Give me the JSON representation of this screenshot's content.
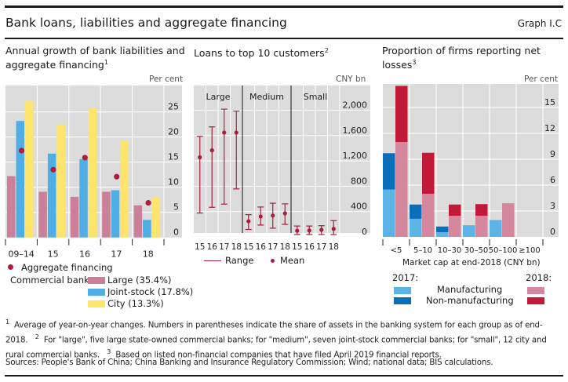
{
  "header": {
    "title": "Bank loans, liabilities and aggregate financing",
    "graph_id": "Graph I.C"
  },
  "panels": {
    "left": {
      "title": "Annual growth of bank liabilities and aggregate financing",
      "title_sup": "1",
      "unit": "Per cent",
      "legend": {
        "agg_label": "Aggregate financing",
        "banks_label": "Commercial banks:",
        "large": "Large (35.4%)",
        "joint": "Joint-stock (17.8%)",
        "city": "City (13.3%)"
      }
    },
    "middle": {
      "title": "Loans to top 10 customers",
      "title_sup": "2",
      "unit": "CNY bn",
      "legend": {
        "range": "Range",
        "mean": "Mean"
      }
    },
    "right": {
      "title": "Proportion of firms reporting net losses",
      "title_sup": "3",
      "unit": "Per cent",
      "xlabel": "Market cap at end-2018 (CNY bn)",
      "legend": {
        "y2017": "2017:",
        "y2018": "2018:",
        "manuf": "Manufacturing",
        "nonmanuf": "Non-manufacturing"
      }
    }
  },
  "colors": {
    "large": "#cc7f99",
    "joint": "#4faee3",
    "city": "#fde46a",
    "agg": "#b01c3c",
    "range": "#a3203f",
    "manuf2017": "#5cb3e6",
    "nonmanuf2017": "#0a6fb8",
    "manuf2018": "#d4879d",
    "nonmanuf2018": "#c01a38",
    "plot_bg": "#dcdcdc",
    "grid": "#ffffff"
  },
  "chart_data": [
    {
      "type": "bar",
      "title": "Annual growth of bank liabilities and aggregate financing",
      "ylabel": "Per cent",
      "categories": [
        "09–14",
        "15",
        "16",
        "17",
        "18"
      ],
      "series": [
        {
          "name": "Large (35.4%)",
          "values": [
            12.2,
            9.1,
            8.1,
            9.1,
            6.4
          ]
        },
        {
          "name": "Joint-stock (17.8%)",
          "values": [
            23.2,
            16.7,
            15.6,
            9.4,
            3.5
          ]
        },
        {
          "name": "City (13.3%)",
          "values": [
            27.2,
            22.5,
            25.7,
            19.3,
            8.1
          ]
        },
        {
          "name": "Aggregate financing",
          "kind": "dot",
          "values": [
            17.3,
            13.5,
            15.9,
            12.1,
            6.9
          ]
        }
      ],
      "yticks": [
        0,
        5,
        10,
        15,
        20,
        25
      ],
      "ylim": [
        0,
        30
      ],
      "grid": true,
      "axis_side": "right"
    },
    {
      "type": "scatter",
      "subtype": "range-mean",
      "title": "Loans to top 10 customers",
      "ylabel": "CNY bn",
      "groups": [
        "Large",
        "Medium",
        "Small"
      ],
      "x": [
        "15",
        "16",
        "17",
        "18"
      ],
      "series": [
        {
          "name": "Large",
          "min": [
            340,
            430,
            480,
            720
          ],
          "max": [
            1500,
            1650,
            1930,
            1900
          ],
          "mean": [
            1170,
            1280,
            1560,
            1560
          ]
        },
        {
          "name": "Medium",
          "min": [
            80,
            150,
            100,
            160
          ],
          "max": [
            265,
            385,
            445,
            435
          ],
          "mean": [
            160,
            235,
            250,
            285
          ]
        },
        {
          "name": "Small",
          "min": [
            0,
            0,
            0,
            0
          ],
          "max": [
            85,
            85,
            90,
            170
          ],
          "mean": [
            10,
            15,
            25,
            40
          ]
        }
      ],
      "yticks": [
        0,
        400,
        800,
        1200,
        1600,
        2000
      ],
      "ytick_labels": [
        "0",
        "400",
        "800",
        "1,200",
        "1,600",
        "2,000"
      ],
      "ylim": [
        -50,
        2300
      ],
      "grid": true,
      "axis_side": "right"
    },
    {
      "type": "bar",
      "subtype": "stacked-grouped",
      "title": "Proportion of firms reporting net losses",
      "ylabel": "Per cent",
      "xlabel": "Market cap at end-2018 (CNY bn)",
      "categories": [
        "<5",
        "5–10",
        "10–30",
        "30–50",
        "50–100",
        "≥100"
      ],
      "series": [
        {
          "name": "2017 Manufacturing",
          "values": [
            5.5,
            2.1,
            0.55,
            1.35,
            1.95,
            0
          ]
        },
        {
          "name": "2017 Non-manufacturing",
          "values": [
            4.2,
            1.65,
            0.65,
            0.0,
            0.0,
            0
          ]
        },
        {
          "name": "2018 Manufacturing",
          "values": [
            11.0,
            5.0,
            2.45,
            2.45,
            3.9,
            0
          ]
        },
        {
          "name": "2018 Non-manufacturing",
          "values": [
            6.5,
            4.75,
            1.3,
            1.35,
            0.0,
            0
          ]
        }
      ],
      "yticks": [
        0,
        3,
        6,
        9,
        12,
        15
      ],
      "ylim": [
        0,
        18
      ],
      "grid": true,
      "axis_side": "right"
    }
  ],
  "footnotes": {
    "n1": "Average of year-on-year changes. Numbers in parentheses indicate the share of assets in the banking system for each group as of end-2018.",
    "n2": "For \"large\", five large state-owned commercial banks; for \"medium\", seven joint-stock commercial banks; for \"small\", 12 city and rural commercial banks.",
    "n3": "Based on listed non-financial companies that have filed April 2019 financial reports.",
    "n1_mark": "1",
    "n2_mark": "2",
    "n3_mark": "3",
    "sources": "Sources: People's Bank of China; China Banking and Insurance Regulatory Commission; Wind; national data; BIS calculations."
  }
}
